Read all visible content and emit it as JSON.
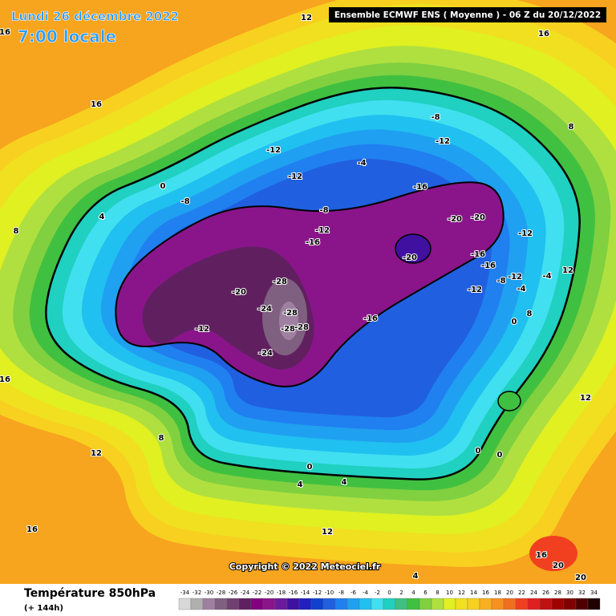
{
  "header": {
    "date": "Lundi 26 décembre 2022",
    "time": "7:00 locale",
    "model": "Ensemble ECMWF ENS  ( Moyenne )  -  06 Z du 20/12/2022"
  },
  "footer": {
    "variable": "Température 850hPa",
    "lead": "(+ 144h)",
    "copyright": "Copyright © 2022 Meteociel.fr"
  },
  "scale": {
    "values": [
      -34,
      -32,
      -30,
      -28,
      -26,
      -24,
      -22,
      -20,
      -18,
      -16,
      -14,
      -12,
      -10,
      -8,
      -6,
      -4,
      -2,
      0,
      2,
      4,
      6,
      8,
      10,
      12,
      14,
      16,
      18,
      20,
      22,
      24,
      26,
      28,
      30,
      32,
      34
    ],
    "colors": [
      "#d8d8d8",
      "#b0b0b0",
      "#a080a0",
      "#806080",
      "#704070",
      "#602060",
      "#800080",
      "#8a158a",
      "#6a1a9a",
      "#4010a0",
      "#2020c0",
      "#1040d0",
      "#2060e0",
      "#2080f0",
      "#20a0f0",
      "#20c0f0",
      "#40e0f0",
      "#20d0c0",
      "#40c080",
      "#40c040",
      "#80d040",
      "#b0e040",
      "#e0f020",
      "#f0e020",
      "#f8d020",
      "#f8b020",
      "#f89020",
      "#f07020",
      "#f04020",
      "#e02020",
      "#c01010",
      "#a00000",
      "#800000",
      "#500000",
      "#200000"
    ]
  },
  "contour_labels": [
    12,
    16,
    16,
    16,
    8,
    -8,
    -12,
    -12,
    -4,
    -12,
    0,
    -16,
    -8,
    -8,
    -20,
    -20,
    -12,
    -16,
    -20,
    -12,
    -16,
    -16,
    -12,
    -20,
    -28,
    -24,
    -28,
    -28,
    -28,
    -12,
    -16,
    -24,
    -12,
    -8,
    -4,
    8,
    0,
    12,
    16,
    12,
    8,
    12,
    0,
    4,
    4,
    12,
    16,
    16,
    20,
    20,
    4,
    8,
    4,
    -4,
    0,
    0
  ]
}
